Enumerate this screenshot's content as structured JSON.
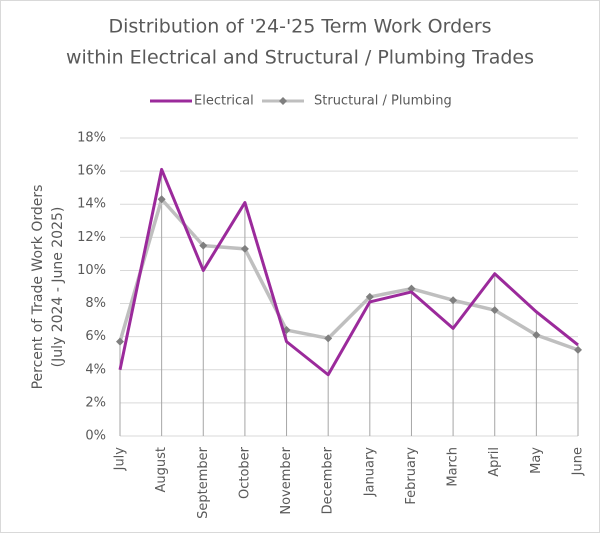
{
  "chart_data": {
    "type": "line",
    "title": [
      "Distribution of '24-'25 Term Work Orders",
      "within Electrical and Structural / Plumbing Trades"
    ],
    "ylabel": [
      "Percent of Trade Work Orders",
      "(July 2024 - June 2025)"
    ],
    "categories": [
      "July",
      "August",
      "September",
      "October",
      "November",
      "December",
      "January",
      "February",
      "March",
      "April",
      "May",
      "June"
    ],
    "series": [
      {
        "name": "Electrical",
        "color": "#9b2a9b",
        "values": [
          4.0,
          16.1,
          10.0,
          14.1,
          5.7,
          3.7,
          8.1,
          8.7,
          6.5,
          9.8,
          7.5,
          5.5
        ]
      },
      {
        "name": "Structural / Plumbing",
        "color": "#bfbfbf",
        "marker_color": "#7f7f7f",
        "values": [
          5.7,
          14.3,
          11.5,
          11.3,
          6.4,
          5.9,
          8.4,
          8.9,
          8.2,
          7.6,
          6.1,
          5.2
        ]
      }
    ],
    "ylim": [
      0,
      18
    ],
    "yticks": [
      {
        "value": 0,
        "label": "0%"
      },
      {
        "value": 2,
        "label": "2%"
      },
      {
        "value": 4,
        "label": "4%"
      },
      {
        "value": 6,
        "label": "6%"
      },
      {
        "value": 8,
        "label": "8%"
      },
      {
        "value": 10,
        "label": "10%"
      },
      {
        "value": 12,
        "label": "12%"
      },
      {
        "value": 14,
        "label": "14%"
      },
      {
        "value": 16,
        "label": "16%"
      },
      {
        "value": 18,
        "label": "18%"
      }
    ],
    "grid": true,
    "drop_lines": true,
    "legend": "top"
  }
}
